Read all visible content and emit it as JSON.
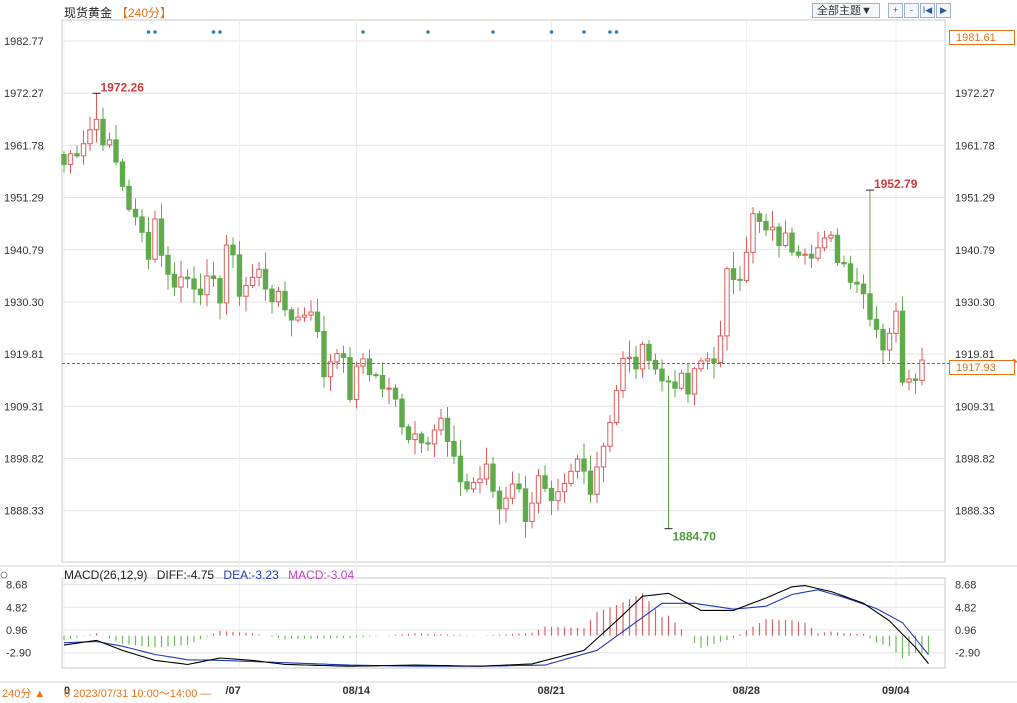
{
  "header": {
    "instrument": "现货黄金",
    "period": "【240分】",
    "topic_button": "全部主题▼",
    "tools": [
      "+",
      "-",
      "I◀",
      "▶"
    ]
  },
  "price_tags": {
    "top": "1981.61",
    "last": "1917.93",
    "top_value": 1981.61,
    "last_value": 1917.93
  },
  "footer": {
    "period_label": "240分 ▲",
    "cursor_time": "0 2023/07/31 10:00～14:00 —"
  },
  "colors": {
    "up": "#e05a5a",
    "down": "#5faa4a",
    "grid": "#e3e3e3",
    "last_line": "#2a7fbf",
    "macd_dif": "#000000",
    "macd_dea": "#1f3bb8",
    "macd_hist_pos": "#d86060",
    "macd_hist_neg": "#6dbb5d",
    "label_high": "#d23b3b",
    "label_low": "#4c9a3c",
    "event_dot": "#2a7fbf",
    "axis_text": "#333333",
    "accent": "#e8711a"
  },
  "chart_data": [
    {
      "type": "candlestick",
      "title": "现货黄金",
      "y_ticks": [
        1982.77,
        1972.27,
        1961.78,
        1951.29,
        1940.79,
        1930.3,
        1919.81,
        1909.31,
        1898.82,
        1888.33
      ],
      "y_tick_labels": [
        "1982.77",
        "1972.27",
        "1961.78",
        "1951.29",
        "1940.79",
        "1930.30",
        "1919.81",
        "1909.31",
        "1898.82",
        "1888.33"
      ],
      "ylim": [
        1878,
        1987
      ],
      "x_tick_labels": [
        {
          "index": 0,
          "label": "0"
        },
        {
          "index": 27,
          "label": "/07"
        },
        {
          "index": 45,
          "label": "08/14"
        },
        {
          "index": 75,
          "label": "08/21"
        },
        {
          "index": 105,
          "label": "08/28"
        },
        {
          "index": 128,
          "label": "09/04"
        }
      ],
      "annotations": [
        {
          "index": 5,
          "value": 1972.26,
          "label": "1972.26",
          "kind": "high"
        },
        {
          "index": 93,
          "value": 1884.7,
          "label": "1884.70",
          "kind": "low"
        },
        {
          "index": 124,
          "value": 1952.79,
          "label": "1952.79",
          "kind": "high"
        }
      ],
      "last_price": 1917.93,
      "event_markers": [
        13,
        14,
        23,
        24,
        46,
        56,
        66,
        75,
        80,
        84,
        85
      ],
      "anchors": [
        [
          0,
          1958
        ],
        [
          5,
          1967
        ],
        [
          8,
          1958
        ],
        [
          11,
          1946
        ],
        [
          13,
          1941
        ],
        [
          14,
          1947
        ],
        [
          16,
          1935
        ],
        [
          19,
          1935
        ],
        [
          21,
          1934
        ],
        [
          24,
          1932
        ],
        [
          25,
          1942
        ],
        [
          27,
          1933
        ],
        [
          30,
          1936
        ],
        [
          33,
          1930
        ],
        [
          36,
          1927
        ],
        [
          38,
          1930
        ],
        [
          40,
          1916
        ],
        [
          42,
          1922
        ],
        [
          44,
          1912
        ],
        [
          46,
          1919
        ],
        [
          48,
          1915
        ],
        [
          51,
          1910
        ],
        [
          53,
          1904
        ],
        [
          56,
          1904
        ],
        [
          58,
          1906
        ],
        [
          60,
          1897
        ],
        [
          62,
          1893
        ],
        [
          65,
          1896
        ],
        [
          67,
          1889
        ],
        [
          69,
          1895
        ],
        [
          71,
          1888
        ],
        [
          73,
          1894
        ],
        [
          75,
          1888
        ],
        [
          77,
          1892
        ],
        [
          79,
          1898
        ],
        [
          81,
          1894
        ],
        [
          83,
          1902
        ],
        [
          85,
          1913
        ],
        [
          86,
          1918
        ],
        [
          88,
          1918
        ],
        [
          90,
          1921
        ],
        [
          92,
          1914
        ],
        [
          94,
          1915
        ],
        [
          96,
          1912
        ],
        [
          98,
          1918
        ],
        [
          100,
          1920
        ],
        [
          101,
          1922
        ],
        [
          102,
          1935
        ],
        [
          104,
          1937
        ],
        [
          106,
          1947
        ],
        [
          108,
          1944
        ],
        [
          110,
          1943
        ],
        [
          112,
          1942
        ],
        [
          114,
          1942
        ],
        [
          116,
          1941
        ],
        [
          118,
          1942
        ],
        [
          120,
          1938
        ],
        [
          122,
          1935
        ],
        [
          124,
          1929
        ],
        [
          126,
          1922
        ],
        [
          127,
          1925
        ],
        [
          128,
          1927
        ],
        [
          129,
          1916
        ],
        [
          131,
          1917
        ],
        [
          132,
          1918
        ]
      ]
    },
    {
      "type": "line",
      "title": "MACD(26,12,9)",
      "legend": [
        {
          "name": "DIFF",
          "text": "DIFF:-4.75",
          "value": -4.75
        },
        {
          "name": "DEA",
          "text": "DEA:-3.23",
          "value": -3.23
        },
        {
          "name": "MACD",
          "text": "MACD:-3.04",
          "value": -3.04
        }
      ],
      "y_ticks": [
        8.68,
        4.82,
        0.96,
        -2.9
      ],
      "y_tick_labels": [
        "8.68",
        "4.82",
        "0.96",
        "-2.90"
      ],
      "ylim": [
        -5.5,
        9.8
      ],
      "diff_anchors": [
        [
          0,
          -1.6
        ],
        [
          5,
          -0.8
        ],
        [
          9,
          -2.5
        ],
        [
          14,
          -4.2
        ],
        [
          19,
          -4.9
        ],
        [
          24,
          -3.8
        ],
        [
          29,
          -4.2
        ],
        [
          34,
          -4.9
        ],
        [
          44,
          -5.2
        ],
        [
          54,
          -5.0
        ],
        [
          64,
          -5.2
        ],
        [
          72,
          -4.8
        ],
        [
          80,
          -2.5
        ],
        [
          85,
          2.5
        ],
        [
          89,
          6.7
        ],
        [
          93,
          7.2
        ],
        [
          98,
          4.3
        ],
        [
          103,
          4.3
        ],
        [
          108,
          6.4
        ],
        [
          112,
          8.3
        ],
        [
          114,
          8.5
        ],
        [
          118,
          7.5
        ],
        [
          123,
          5.5
        ],
        [
          127,
          2.5
        ],
        [
          131,
          -2.0
        ],
        [
          133,
          -4.75
        ]
      ],
      "dea_anchors": [
        [
          0,
          -1.2
        ],
        [
          5,
          -1.0
        ],
        [
          9,
          -1.8
        ],
        [
          14,
          -3.2
        ],
        [
          19,
          -4.1
        ],
        [
          24,
          -4.2
        ],
        [
          34,
          -4.6
        ],
        [
          44,
          -5.0
        ],
        [
          54,
          -5.2
        ],
        [
          64,
          -5.2
        ],
        [
          74,
          -5.0
        ],
        [
          82,
          -2.5
        ],
        [
          87,
          1.5
        ],
        [
          92,
          5.5
        ],
        [
          97,
          5.5
        ],
        [
          103,
          4.5
        ],
        [
          108,
          5.0
        ],
        [
          112,
          7.0
        ],
        [
          116,
          7.8
        ],
        [
          120,
          6.5
        ],
        [
          125,
          4.6
        ],
        [
          129,
          2.2
        ],
        [
          133,
          -3.23
        ]
      ]
    }
  ]
}
